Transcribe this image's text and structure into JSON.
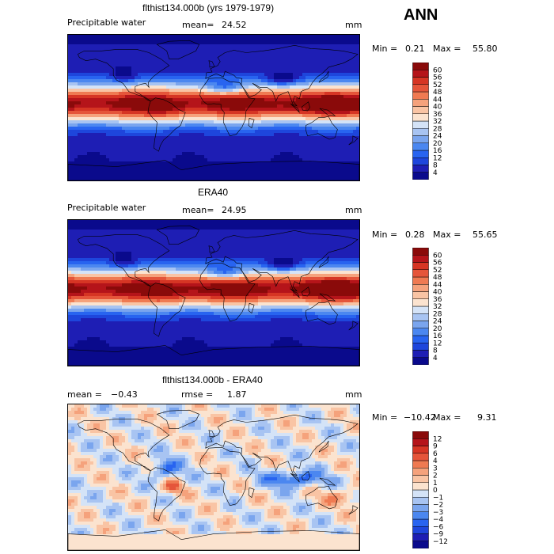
{
  "header": {
    "season": "ANN"
  },
  "chart_data": [
    {
      "type": "heatmap",
      "title": "flthist134.000b (yrs 1979-1979)",
      "variable": "Precipitable water",
      "mean_label": "mean=",
      "mean_value": "24.52",
      "units": "mm",
      "min_label": "Min =",
      "min_value": "0.21",
      "max_label": "Max =",
      "max_value": "55.80",
      "stats": {
        "min": 0.21,
        "max": 55.8,
        "mean": 24.52
      },
      "levels": [
        "4",
        "8",
        "12",
        "16",
        "20",
        "24",
        "28",
        "32",
        "36",
        "40",
        "44",
        "48",
        "52",
        "56",
        "60"
      ],
      "colors": [
        "#0a0a8c",
        "#1e1eb4",
        "#1e46dc",
        "#2864f0",
        "#4b87f0",
        "#7aa5ee",
        "#a8c4f2",
        "#d4e3f7",
        "#fbe3cf",
        "#f9c4a4",
        "#f5a27c",
        "#ef7a52",
        "#e5553a",
        "#d63524",
        "#b5141a",
        "#8a0a0a"
      ],
      "palette_key": "full",
      "bias": 0
    },
    {
      "type": "heatmap",
      "title": "ERA40",
      "variable": "Precipitable water",
      "mean_label": "mean=",
      "mean_value": "24.95",
      "units": "mm",
      "min_label": "Min =",
      "min_value": "0.28",
      "max_label": "Max =",
      "max_value": "55.65",
      "stats": {
        "min": 0.28,
        "max": 55.65,
        "mean": 24.95
      },
      "levels": [
        "4",
        "8",
        "12",
        "16",
        "20",
        "24",
        "28",
        "32",
        "36",
        "40",
        "44",
        "48",
        "52",
        "56",
        "60"
      ],
      "colors": [
        "#0a0a8c",
        "#1e1eb4",
        "#1e46dc",
        "#2864f0",
        "#4b87f0",
        "#7aa5ee",
        "#a8c4f2",
        "#d4e3f7",
        "#fbe3cf",
        "#f9c4a4",
        "#f5a27c",
        "#ef7a52",
        "#e5553a",
        "#d63524",
        "#b5141a",
        "#8a0a0a"
      ],
      "palette_key": "full",
      "bias": 1
    },
    {
      "type": "heatmap",
      "title": "flthist134.000b - ERA40",
      "mean_label": "mean =",
      "mean_value": "−0.43",
      "rmse_label": "rmse =",
      "rmse_value": "1.87",
      "units": "mm",
      "min_label": "Min =",
      "min_value": "−10.42",
      "max_label": "Max =",
      "max_value": "9.31",
      "stats": {
        "min": -10.42,
        "max": 9.31,
        "mean": -0.43,
        "rmse": 1.87
      },
      "levels": [
        "−12",
        "−9",
        "−6",
        "−4",
        "−3",
        "−2",
        "−1",
        "0",
        "1",
        "2",
        "3",
        "4",
        "6",
        "9",
        "12"
      ],
      "colors": [
        "#0a0a8c",
        "#1e1eb4",
        "#1e46dc",
        "#2864f0",
        "#4b87f0",
        "#7aa5ee",
        "#a8c4f2",
        "#d4e3f7",
        "#fbe3cf",
        "#f9c4a4",
        "#f5a27c",
        "#ef7a52",
        "#e5553a",
        "#d63524",
        "#b5141a",
        "#8a0a0a"
      ],
      "palette_key": "diff"
    }
  ]
}
